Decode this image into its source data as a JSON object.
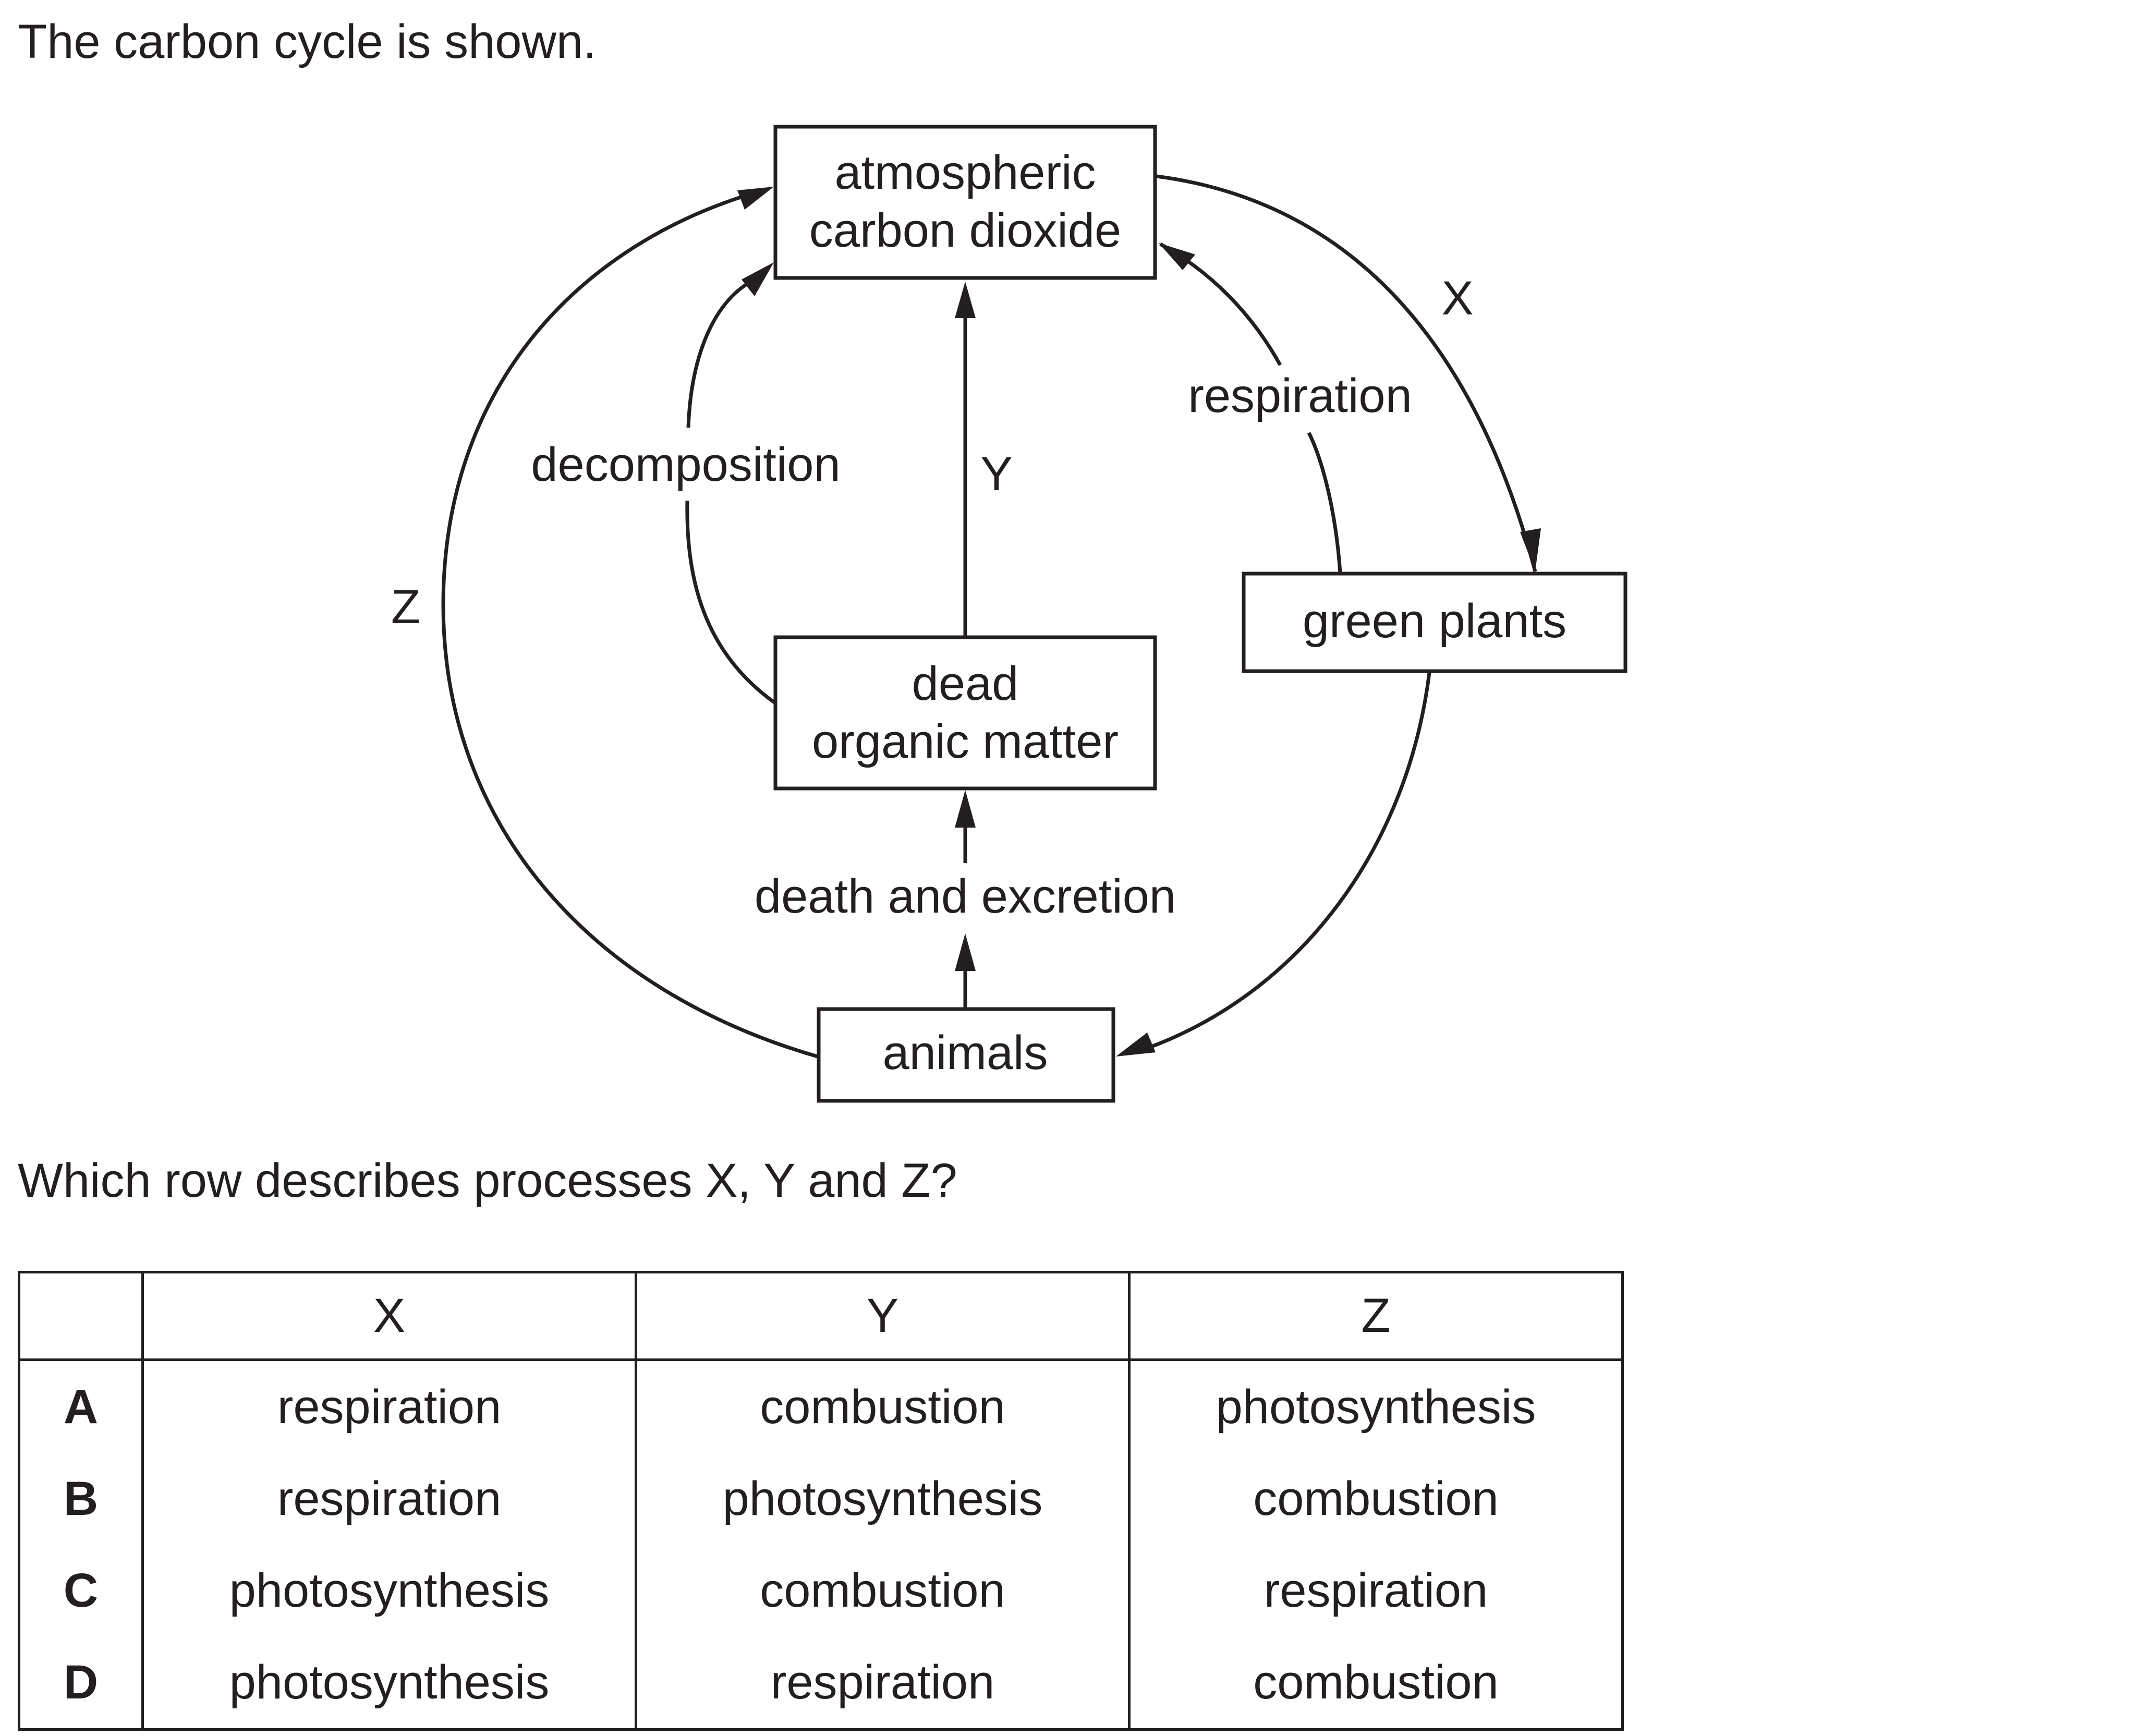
{
  "intro_text": "The carbon cycle is shown.",
  "question_text": "Which row describes processes X, Y and Z?",
  "diagram": {
    "boxes": {
      "atmospheric_co2": [
        "atmospheric",
        "carbon dioxide"
      ],
      "green_plants": "green plants",
      "dead_organic_matter": [
        "dead",
        "organic matter"
      ],
      "animals": "animals"
    },
    "labels": {
      "x": "X",
      "y": "Y",
      "z": "Z",
      "respiration": "respiration",
      "decomposition": "decomposition",
      "death_and_excretion": "death and excretion"
    }
  },
  "table": {
    "headers": [
      "",
      "X",
      "Y",
      "Z"
    ],
    "rows": [
      {
        "letter": "A",
        "x": "respiration",
        "y": "combustion",
        "z": "photosynthesis"
      },
      {
        "letter": "B",
        "x": "respiration",
        "y": "photosynthesis",
        "z": "combustion"
      },
      {
        "letter": "C",
        "x": "photosynthesis",
        "y": "combustion",
        "z": "respiration"
      },
      {
        "letter": "D",
        "x": "photosynthesis",
        "y": "respiration",
        "z": "combustion"
      }
    ]
  }
}
